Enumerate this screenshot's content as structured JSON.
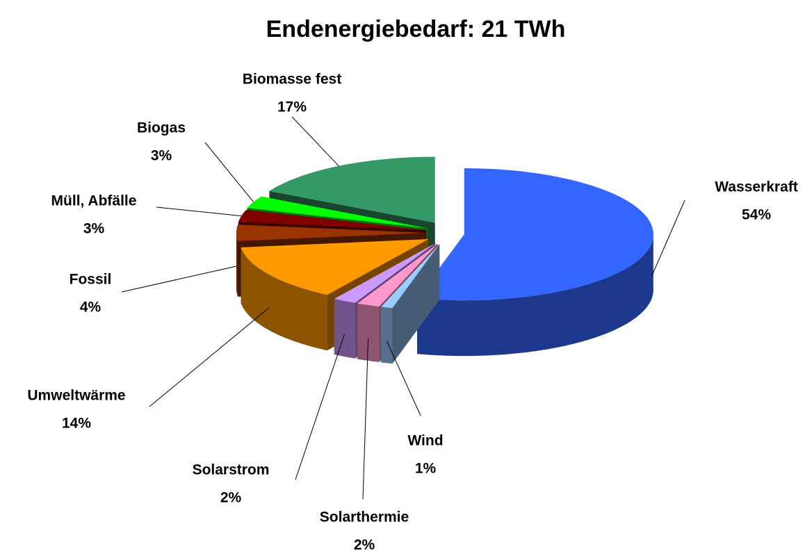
{
  "chart_data": {
    "type": "pie",
    "title": "Endenergiebedarf:  21 TWh",
    "categories": [
      "Wasserkraft",
      "Wind",
      "Solarthermie",
      "Solarstrom",
      "Umweltwärme",
      "Fossil",
      "Müll, Abfälle",
      "Biogas",
      "Biomasse fest"
    ],
    "values": [
      54,
      1,
      2,
      2,
      14,
      4,
      3,
      3,
      17
    ],
    "value_labels": [
      "54%",
      "1%",
      "2%",
      "2%",
      "14%",
      "4%",
      "3%",
      "3%",
      "17%"
    ],
    "colors": [
      "#3366ff",
      "#99ccff",
      "#ff99cc",
      "#cc99ff",
      "#ff9900",
      "#993300",
      "#800000",
      "#00ff00",
      "#339966"
    ]
  }
}
